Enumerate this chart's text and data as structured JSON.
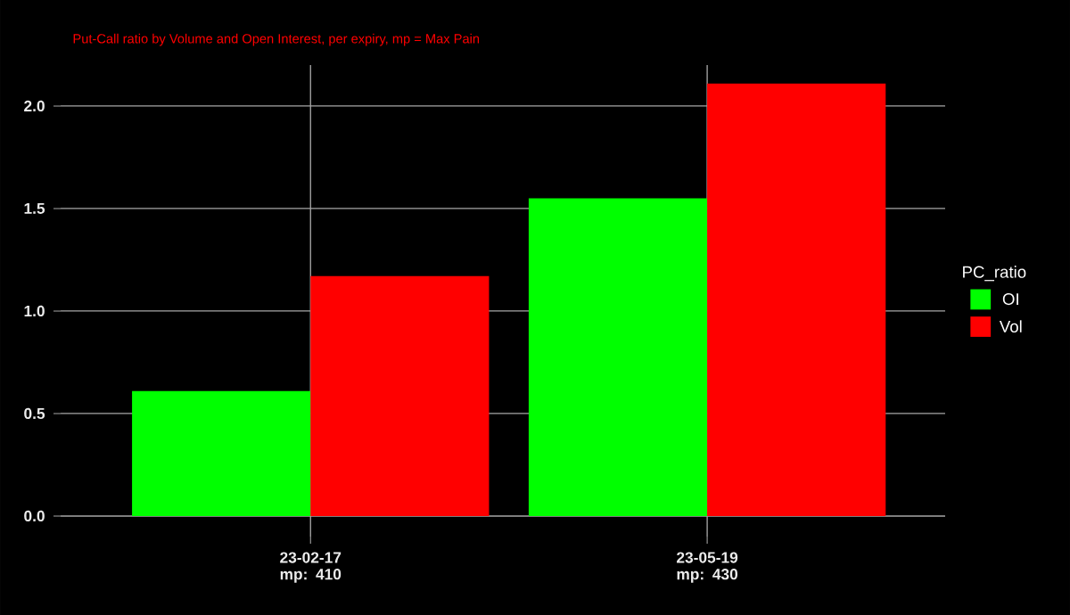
{
  "chart_data": {
    "type": "bar",
    "subtitle": "Put-Call ratio by Volume and Open Interest, per expiry, mp = Max Pain",
    "categories": [
      "23-02-17 mp: 410",
      "23-05-19 mp: 430"
    ],
    "series": [
      {
        "name": "OI",
        "color": "#00ff00",
        "values": [
          0.61,
          1.55
        ]
      },
      {
        "name": "Vol",
        "color": "#ff0000",
        "values": [
          1.17,
          2.11
        ]
      }
    ],
    "legend_title": "PC_ratio",
    "legend": "right",
    "grid": true,
    "ylim": [
      -0.1,
      2.2
    ],
    "yticks": [
      {
        "value": 0,
        "label": "0.0"
      },
      {
        "value": 0.5,
        "label": "0.5"
      },
      {
        "value": 1,
        "label": "1.0"
      },
      {
        "value": 1.5,
        "label": "1.5"
      },
      {
        "value": 2,
        "label": "2.0"
      }
    ]
  }
}
